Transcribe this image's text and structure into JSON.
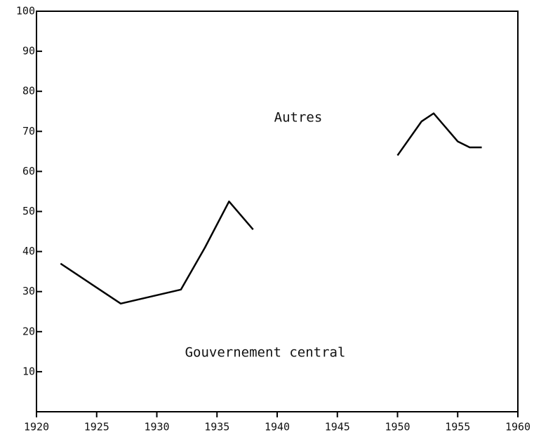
{
  "chart_data": {
    "type": "line",
    "x": [
      1922,
      1927,
      1932,
      1934,
      1936,
      1938,
      null,
      1950,
      1952,
      1953,
      1955,
      1956,
      1957
    ],
    "series": [
      {
        "color": "#000000",
        "values": [
          37,
          27,
          30.5,
          41,
          52.5,
          45.5,
          null,
          64,
          72.5,
          74.5,
          67.5,
          66,
          66
        ]
      }
    ],
    "xlim": [
      1920,
      1960
    ],
    "xticks": [
      1920,
      1925,
      1930,
      1935,
      1940,
      1945,
      1950,
      1955,
      1960
    ],
    "ylim": [
      0,
      100
    ],
    "yticks": [
      10,
      20,
      30,
      40,
      50,
      60,
      70,
      80,
      90,
      100
    ],
    "annotations": [
      "Autres",
      "Gouvernement central"
    ]
  }
}
